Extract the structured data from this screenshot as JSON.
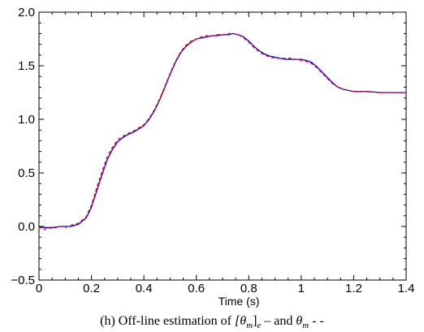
{
  "caption": {
    "prefix": "(h) Off-line estimation of ",
    "sym1": "[θ",
    "sub1": "m",
    "suffix1": "]",
    "sub_e": "e",
    "mid": " – and ",
    "sym2": "θ",
    "sub2": "m",
    "tail": " - -"
  },
  "chart_data": {
    "type": "line",
    "xlabel": "Time (s)",
    "ylabel": "",
    "xlim": [
      0,
      1.4
    ],
    "ylim": [
      -0.5,
      2.0
    ],
    "x_ticks": [
      "0",
      "0.2",
      "0.4",
      "0.6",
      "0.8",
      "1",
      "1.2",
      "1.4"
    ],
    "y_ticks": [
      "−0.5",
      "0.0",
      "0.5",
      "1.0",
      "1.5",
      "2.0"
    ],
    "grid": false,
    "series": [
      {
        "style": "solid",
        "color": "#0000ff",
        "x": [
          0.0,
          0.02,
          0.05,
          0.08,
          0.1,
          0.12,
          0.15,
          0.18,
          0.2,
          0.22,
          0.24,
          0.26,
          0.28,
          0.3,
          0.32,
          0.34,
          0.36,
          0.38,
          0.4,
          0.42,
          0.44,
          0.46,
          0.48,
          0.5,
          0.52,
          0.54,
          0.56,
          0.58,
          0.6,
          0.62,
          0.64,
          0.66,
          0.68,
          0.7,
          0.72,
          0.74,
          0.76,
          0.78,
          0.8,
          0.82,
          0.84,
          0.86,
          0.88,
          0.9,
          0.92,
          0.94,
          0.96,
          0.98,
          1.0,
          1.02,
          1.04,
          1.06,
          1.08,
          1.1,
          1.12,
          1.14,
          1.16,
          1.18,
          1.2,
          1.22,
          1.25,
          1.3,
          1.35,
          1.4
        ],
        "y": [
          0.0,
          -0.01,
          -0.01,
          0.0,
          0.0,
          0.0,
          0.02,
          0.08,
          0.18,
          0.33,
          0.48,
          0.62,
          0.72,
          0.79,
          0.83,
          0.86,
          0.88,
          0.91,
          0.94,
          1.0,
          1.08,
          1.18,
          1.3,
          1.42,
          1.53,
          1.62,
          1.68,
          1.72,
          1.75,
          1.76,
          1.77,
          1.78,
          1.78,
          1.79,
          1.79,
          1.8,
          1.79,
          1.77,
          1.73,
          1.68,
          1.64,
          1.61,
          1.59,
          1.58,
          1.57,
          1.56,
          1.56,
          1.56,
          1.56,
          1.55,
          1.53,
          1.49,
          1.44,
          1.39,
          1.34,
          1.3,
          1.28,
          1.27,
          1.26,
          1.26,
          1.26,
          1.25,
          1.25,
          1.25
        ]
      },
      {
        "style": "dashed",
        "color": "#ff0000",
        "x": [
          0.0,
          0.01,
          0.02,
          0.03,
          0.05,
          0.08,
          0.1,
          0.12,
          0.15,
          0.18,
          0.2,
          0.22,
          0.24,
          0.26,
          0.28,
          0.3,
          0.32,
          0.34,
          0.36,
          0.38,
          0.4,
          0.42,
          0.44,
          0.46,
          0.48,
          0.5,
          0.52,
          0.54,
          0.56,
          0.58,
          0.6,
          0.62,
          0.64,
          0.66,
          0.68,
          0.7,
          0.72,
          0.74,
          0.76,
          0.78,
          0.8,
          0.82,
          0.84,
          0.86,
          0.88,
          0.9,
          0.92,
          0.94,
          0.96,
          0.98,
          1.0,
          1.02,
          1.04,
          1.06,
          1.08,
          1.1,
          1.12,
          1.14,
          1.16,
          1.18,
          1.2,
          1.22,
          1.25,
          1.3,
          1.35,
          1.4
        ],
        "y": [
          0.0,
          -0.02,
          -0.03,
          -0.01,
          -0.02,
          0.0,
          -0.01,
          0.01,
          0.03,
          0.09,
          0.2,
          0.36,
          0.51,
          0.65,
          0.74,
          0.81,
          0.84,
          0.87,
          0.89,
          0.92,
          0.95,
          1.01,
          1.09,
          1.19,
          1.31,
          1.43,
          1.54,
          1.63,
          1.69,
          1.73,
          1.75,
          1.77,
          1.78,
          1.78,
          1.79,
          1.79,
          1.8,
          1.8,
          1.79,
          1.76,
          1.72,
          1.67,
          1.63,
          1.6,
          1.58,
          1.57,
          1.57,
          1.57,
          1.57,
          1.56,
          1.55,
          1.54,
          1.52,
          1.48,
          1.43,
          1.38,
          1.33,
          1.3,
          1.28,
          1.27,
          1.26,
          1.26,
          1.26,
          1.25,
          1.25,
          1.25
        ]
      }
    ]
  }
}
